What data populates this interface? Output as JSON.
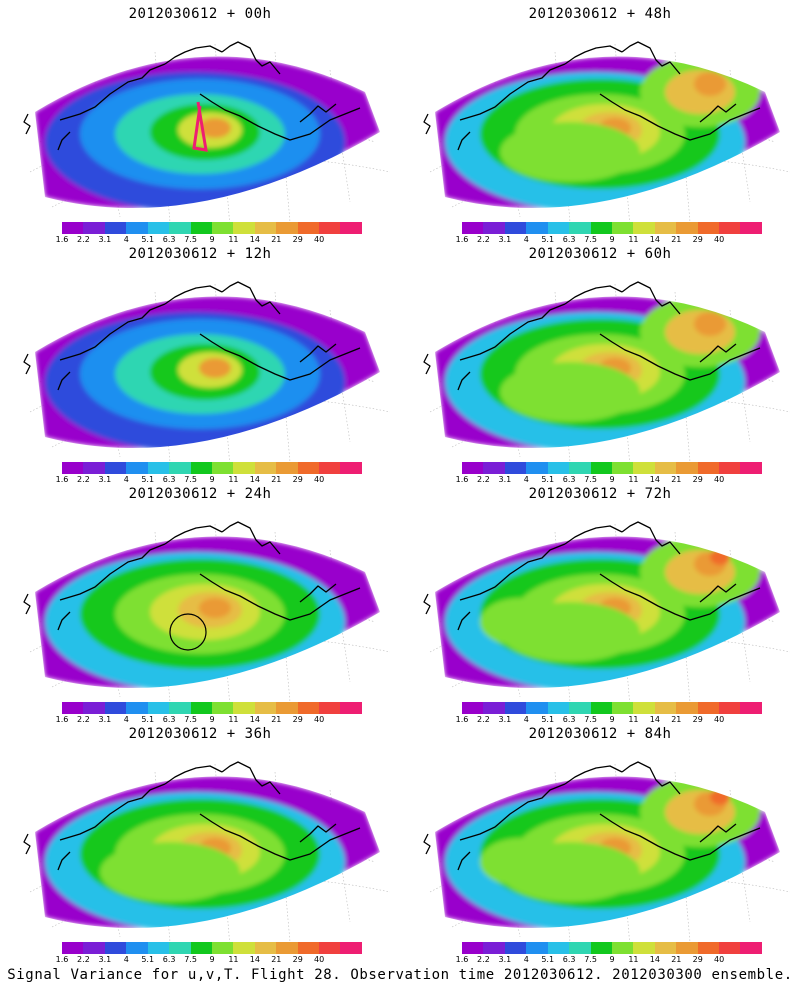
{
  "caption": "Signal Variance for u,v,T. Flight 28. Observation time 2012030612. 2012030300 ensemble.",
  "colorbar": {
    "colors": [
      "#9900cc",
      "#7a1ed6",
      "#2f4bdc",
      "#1f8ff0",
      "#28c0e8",
      "#2fd6b2",
      "#12c81e",
      "#7ee031",
      "#cfe03a",
      "#e6bd45",
      "#ea9a34",
      "#f06a2a",
      "#f0403e",
      "#ee1e72"
    ],
    "labels": [
      "1.6",
      "2.2",
      "3.1",
      "4",
      "5.1",
      "6.3",
      "7.5",
      "9",
      "11",
      "14",
      "21",
      "29",
      "40"
    ]
  },
  "panels": [
    {
      "title": "2012030612 + 00h",
      "lead": 0
    },
    {
      "title": "2012030612 + 48h",
      "lead": 48
    },
    {
      "title": "2012030612 + 12h",
      "lead": 12
    },
    {
      "title": "2012030612 + 60h",
      "lead": 60
    },
    {
      "title": "2012030612 + 24h",
      "lead": 24
    },
    {
      "title": "2012030612 + 72h",
      "lead": 72
    },
    {
      "title": "2012030612 + 36h",
      "lead": 36
    },
    {
      "title": "2012030612 + 84h",
      "lead": 84
    }
  ]
}
